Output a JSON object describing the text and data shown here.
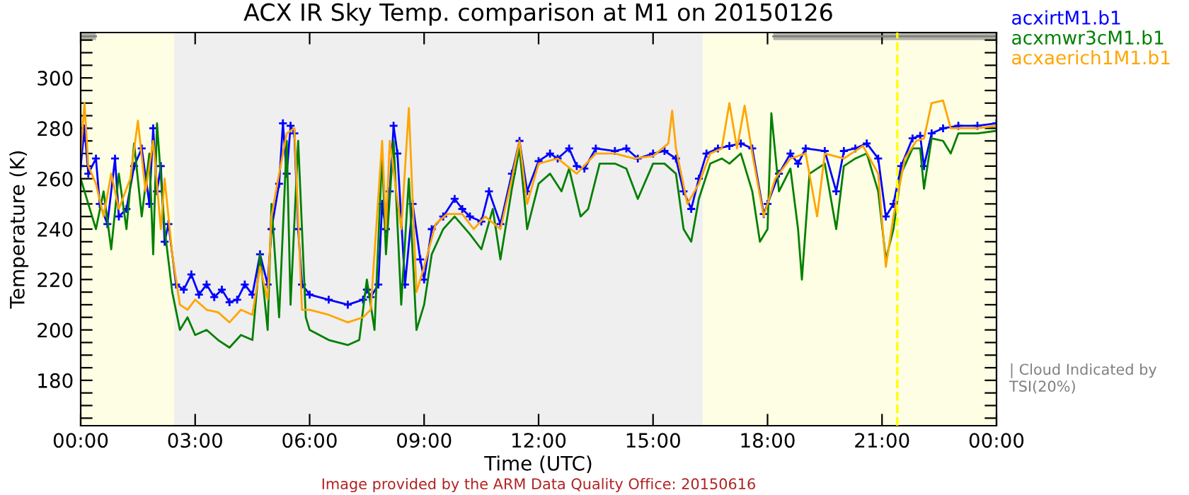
{
  "chart_data": {
    "type": "line",
    "title": "ACX IR Sky Temp. comparison at M1 on 20150126",
    "xlabel": "Time (UTC)",
    "ylabel": "Temperature (K)",
    "annotations": [
      "| Cloud Indicated by TSI(20%)",
      "Image provided by the ARM Data Quality Office: 20150616"
    ],
    "xlim": [
      0,
      24
    ],
    "xticks": [
      {
        "value": 0,
        "label": "00:00"
      },
      {
        "value": 3,
        "label": "03:00"
      },
      {
        "value": 6,
        "label": "06:00"
      },
      {
        "value": 9,
        "label": "09:00"
      },
      {
        "value": 12,
        "label": "12:00"
      },
      {
        "value": 15,
        "label": "15:00"
      },
      {
        "value": 18,
        "label": "18:00"
      },
      {
        "value": 21,
        "label": "21:00"
      },
      {
        "value": 24,
        "label": "00:00"
      }
    ],
    "ylim": [
      162,
      318
    ],
    "yticks": [
      {
        "value": 165,
        "label": null
      },
      {
        "value": 170,
        "label": null
      },
      {
        "value": 175,
        "label": null
      },
      180,
      {
        "value": 185,
        "label": null
      },
      {
        "value": 190,
        "label": null
      },
      {
        "value": 195,
        "label": null
      },
      200,
      {
        "value": 205,
        "label": null
      },
      {
        "value": 210,
        "label": null
      },
      {
        "value": 215,
        "label": null
      },
      220,
      {
        "value": 225,
        "label": null
      },
      {
        "value": 230,
        "label": null
      },
      {
        "value": 235,
        "label": null
      },
      240,
      {
        "value": 245,
        "label": null
      },
      {
        "value": 250,
        "label": null
      },
      {
        "value": 255,
        "label": null
      },
      260,
      {
        "value": 265,
        "label": null
      },
      {
        "value": 270,
        "label": null
      },
      {
        "value": 275,
        "label": null
      },
      280,
      {
        "value": 285,
        "label": null
      },
      {
        "value": 290,
        "label": null
      },
      {
        "value": 295,
        "label": null
      },
      300,
      {
        "value": 305,
        "label": null
      },
      {
        "value": 310,
        "label": null
      },
      {
        "value": 315,
        "label": null
      }
    ],
    "grid": false,
    "legend": "top right",
    "line_style": "solid",
    "bands": [
      {
        "axis": "x",
        "from": 0,
        "to": 2.45,
        "color": "#fefee4"
      },
      {
        "axis": "x",
        "from": 2.45,
        "to": 16.3,
        "color": "#efefef"
      },
      {
        "axis": "x",
        "from": 16.3,
        "to": 24,
        "color": "#fefee4"
      }
    ],
    "ref_lines": [
      {
        "axis": "x",
        "value": 21.4,
        "color": "#ffff00",
        "line_style": "dashed"
      }
    ],
    "series": [
      {
        "type": "line",
        "color": "#808080",
        "x": [
          0,
          0.4
        ],
        "values": [
          316.5,
          316.5
        ],
        "lower": [
          315,
          315
        ],
        "upper": [
          318,
          318
        ]
      },
      {
        "type": "line",
        "color": "#808080",
        "x": [
          18.15,
          24
        ],
        "values": [
          316.5,
          316.5
        ],
        "lower": [
          315,
          315
        ],
        "upper": [
          318,
          318
        ]
      },
      {
        "name": "acxirtM1.b1",
        "color": "#0000ff",
        "marker": "cross",
        "x": [
          0,
          0.1,
          0.2,
          0.4,
          0.5,
          0.7,
          0.9,
          1.0,
          1.2,
          1.4,
          1.6,
          1.8,
          1.9,
          2.0,
          2.1,
          2.2,
          2.3,
          2.5,
          2.7,
          2.9,
          3.1,
          3.3,
          3.5,
          3.7,
          3.9,
          4.1,
          4.3,
          4.5,
          4.7,
          4.9,
          5.0,
          5.2,
          5.3,
          5.4,
          5.5,
          5.6,
          5.7,
          5.8,
          6.0,
          6.5,
          7.0,
          7.4,
          7.5,
          7.6,
          7.8,
          7.9,
          8.0,
          8.1,
          8.2,
          8.3,
          8.5,
          8.7,
          8.9,
          9.0,
          9.2,
          9.5,
          9.8,
          10.0,
          10.2,
          10.5,
          10.7,
          11.0,
          11.3,
          11.5,
          11.7,
          12.0,
          12.3,
          12.5,
          12.8,
          13.0,
          13.2,
          13.5,
          14.0,
          14.3,
          14.6,
          15.0,
          15.3,
          15.6,
          15.8,
          16.0,
          16.2,
          16.4,
          16.7,
          17.0,
          17.3,
          17.6,
          17.9,
          18.0,
          18.3,
          18.6,
          18.8,
          19.0,
          19.5,
          19.8,
          20.0,
          20.3,
          20.6,
          20.9,
          21.1,
          21.3,
          21.5,
          21.8,
          22.0,
          22.1,
          22.3,
          22.6,
          23.0,
          23.5,
          24.0
        ],
        "values": [
          265,
          280,
          262,
          268,
          250,
          242,
          268,
          245,
          248,
          265,
          272,
          250,
          280,
          255,
          265,
          235,
          242,
          218,
          216,
          222,
          214,
          218,
          213,
          216,
          211,
          212,
          218,
          214,
          230,
          218,
          240,
          258,
          282,
          262,
          281,
          278,
          240,
          218,
          214,
          212,
          210,
          212,
          216,
          213,
          218,
          250,
          240,
          255,
          281,
          270,
          218,
          250,
          228,
          220,
          240,
          245,
          252,
          248,
          245,
          243,
          255,
          242,
          262,
          275,
          255,
          267,
          270,
          268,
          272,
          265,
          264,
          272,
          271,
          272,
          268,
          270,
          271,
          268,
          255,
          248,
          260,
          270,
          272,
          273,
          274,
          272,
          246,
          250,
          262,
          270,
          266,
          272,
          271,
          255,
          271,
          272,
          274,
          268,
          245,
          250,
          265,
          276,
          277,
          265,
          278,
          280,
          281,
          281,
          282
        ]
      },
      {
        "name": "acxmwr3cM1.b1",
        "color": "#008000",
        "x": [
          0,
          0.2,
          0.4,
          0.6,
          0.8,
          1.0,
          1.2,
          1.4,
          1.6,
          1.8,
          1.9,
          2.0,
          2.2,
          2.4,
          2.6,
          2.8,
          3.0,
          3.3,
          3.6,
          3.9,
          4.2,
          4.5,
          4.7,
          4.9,
          5.0,
          5.2,
          5.4,
          5.5,
          5.7,
          5.9,
          6.0,
          6.5,
          7.0,
          7.3,
          7.5,
          7.7,
          7.9,
          8.0,
          8.2,
          8.4,
          8.6,
          8.8,
          9.0,
          9.2,
          9.5,
          9.8,
          10.2,
          10.5,
          10.8,
          11.0,
          11.3,
          11.5,
          11.7,
          12.0,
          12.3,
          12.6,
          12.8,
          13.1,
          13.3,
          13.6,
          14.0,
          14.3,
          14.6,
          15.0,
          15.3,
          15.6,
          15.8,
          16.0,
          16.2,
          16.5,
          16.8,
          17.0,
          17.3,
          17.6,
          17.8,
          18.0,
          18.1,
          18.3,
          18.6,
          18.8,
          18.9,
          19.1,
          19.5,
          19.8,
          20.0,
          20.3,
          20.6,
          20.9,
          21.1,
          21.3,
          21.5,
          21.8,
          22.0,
          22.1,
          22.3,
          22.6,
          22.8,
          23.0,
          23.5,
          24.0
        ],
        "values": [
          260,
          250,
          240,
          255,
          232,
          262,
          240,
          274,
          245,
          270,
          230,
          282,
          240,
          215,
          200,
          205,
          198,
          200,
          196,
          193,
          198,
          196,
          230,
          200,
          250,
          205,
          275,
          210,
          275,
          205,
          200,
          196,
          194,
          196,
          220,
          200,
          270,
          230,
          275,
          210,
          260,
          200,
          210,
          230,
          240,
          245,
          238,
          232,
          248,
          228,
          256,
          272,
          240,
          258,
          262,
          255,
          264,
          245,
          248,
          266,
          266,
          264,
          252,
          266,
          266,
          262,
          240,
          235,
          252,
          266,
          268,
          266,
          270,
          255,
          235,
          240,
          286,
          255,
          264,
          240,
          220,
          262,
          266,
          240,
          265,
          268,
          270,
          255,
          228,
          240,
          262,
          272,
          272,
          256,
          276,
          275,
          270,
          278,
          278,
          279
        ]
      },
      {
        "name": "acxaerich1M1.b1",
        "color": "#ffa500",
        "x": [
          0,
          0.1,
          0.2,
          0.4,
          0.6,
          0.8,
          1.0,
          1.3,
          1.5,
          1.7,
          1.9,
          2.1,
          2.2,
          2.4,
          2.6,
          2.8,
          3.0,
          3.3,
          3.6,
          3.9,
          4.2,
          4.5,
          4.7,
          4.9,
          5.0,
          5.2,
          5.4,
          5.6,
          5.8,
          6.0,
          6.5,
          7.0,
          7.4,
          7.6,
          7.9,
          8.0,
          8.1,
          8.4,
          8.6,
          8.8,
          9.0,
          9.3,
          9.6,
          10.0,
          10.3,
          10.6,
          11.0,
          11.3,
          11.5,
          11.7,
          12.0,
          12.5,
          13.0,
          13.5,
          14.0,
          14.5,
          15.0,
          15.4,
          15.5,
          15.6,
          15.9,
          16.2,
          16.5,
          16.8,
          17.0,
          17.2,
          17.4,
          17.6,
          17.9,
          18.2,
          18.6,
          19.0,
          19.3,
          19.5,
          20.0,
          20.5,
          20.9,
          21.1,
          21.3,
          21.6,
          21.9,
          22.1,
          22.3,
          22.6,
          22.8,
          23.0,
          23.5,
          24.0
        ],
        "values": [
          270,
          290,
          265,
          258,
          245,
          262,
          248,
          260,
          283,
          255,
          275,
          240,
          260,
          230,
          210,
          208,
          212,
          208,
          207,
          203,
          208,
          206,
          225,
          212,
          245,
          262,
          278,
          280,
          208,
          208,
          206,
          203,
          205,
          208,
          275,
          240,
          275,
          240,
          288,
          215,
          225,
          242,
          246,
          246,
          240,
          245,
          240,
          260,
          275,
          250,
          266,
          268,
          262,
          270,
          270,
          268,
          269,
          274,
          287,
          272,
          250,
          258,
          270,
          272,
          290,
          272,
          289,
          270,
          245,
          260,
          268,
          270,
          245,
          270,
          268,
          273,
          262,
          225,
          245,
          268,
          275,
          276,
          290,
          291,
          280,
          280,
          280,
          281
        ]
      }
    ]
  }
}
